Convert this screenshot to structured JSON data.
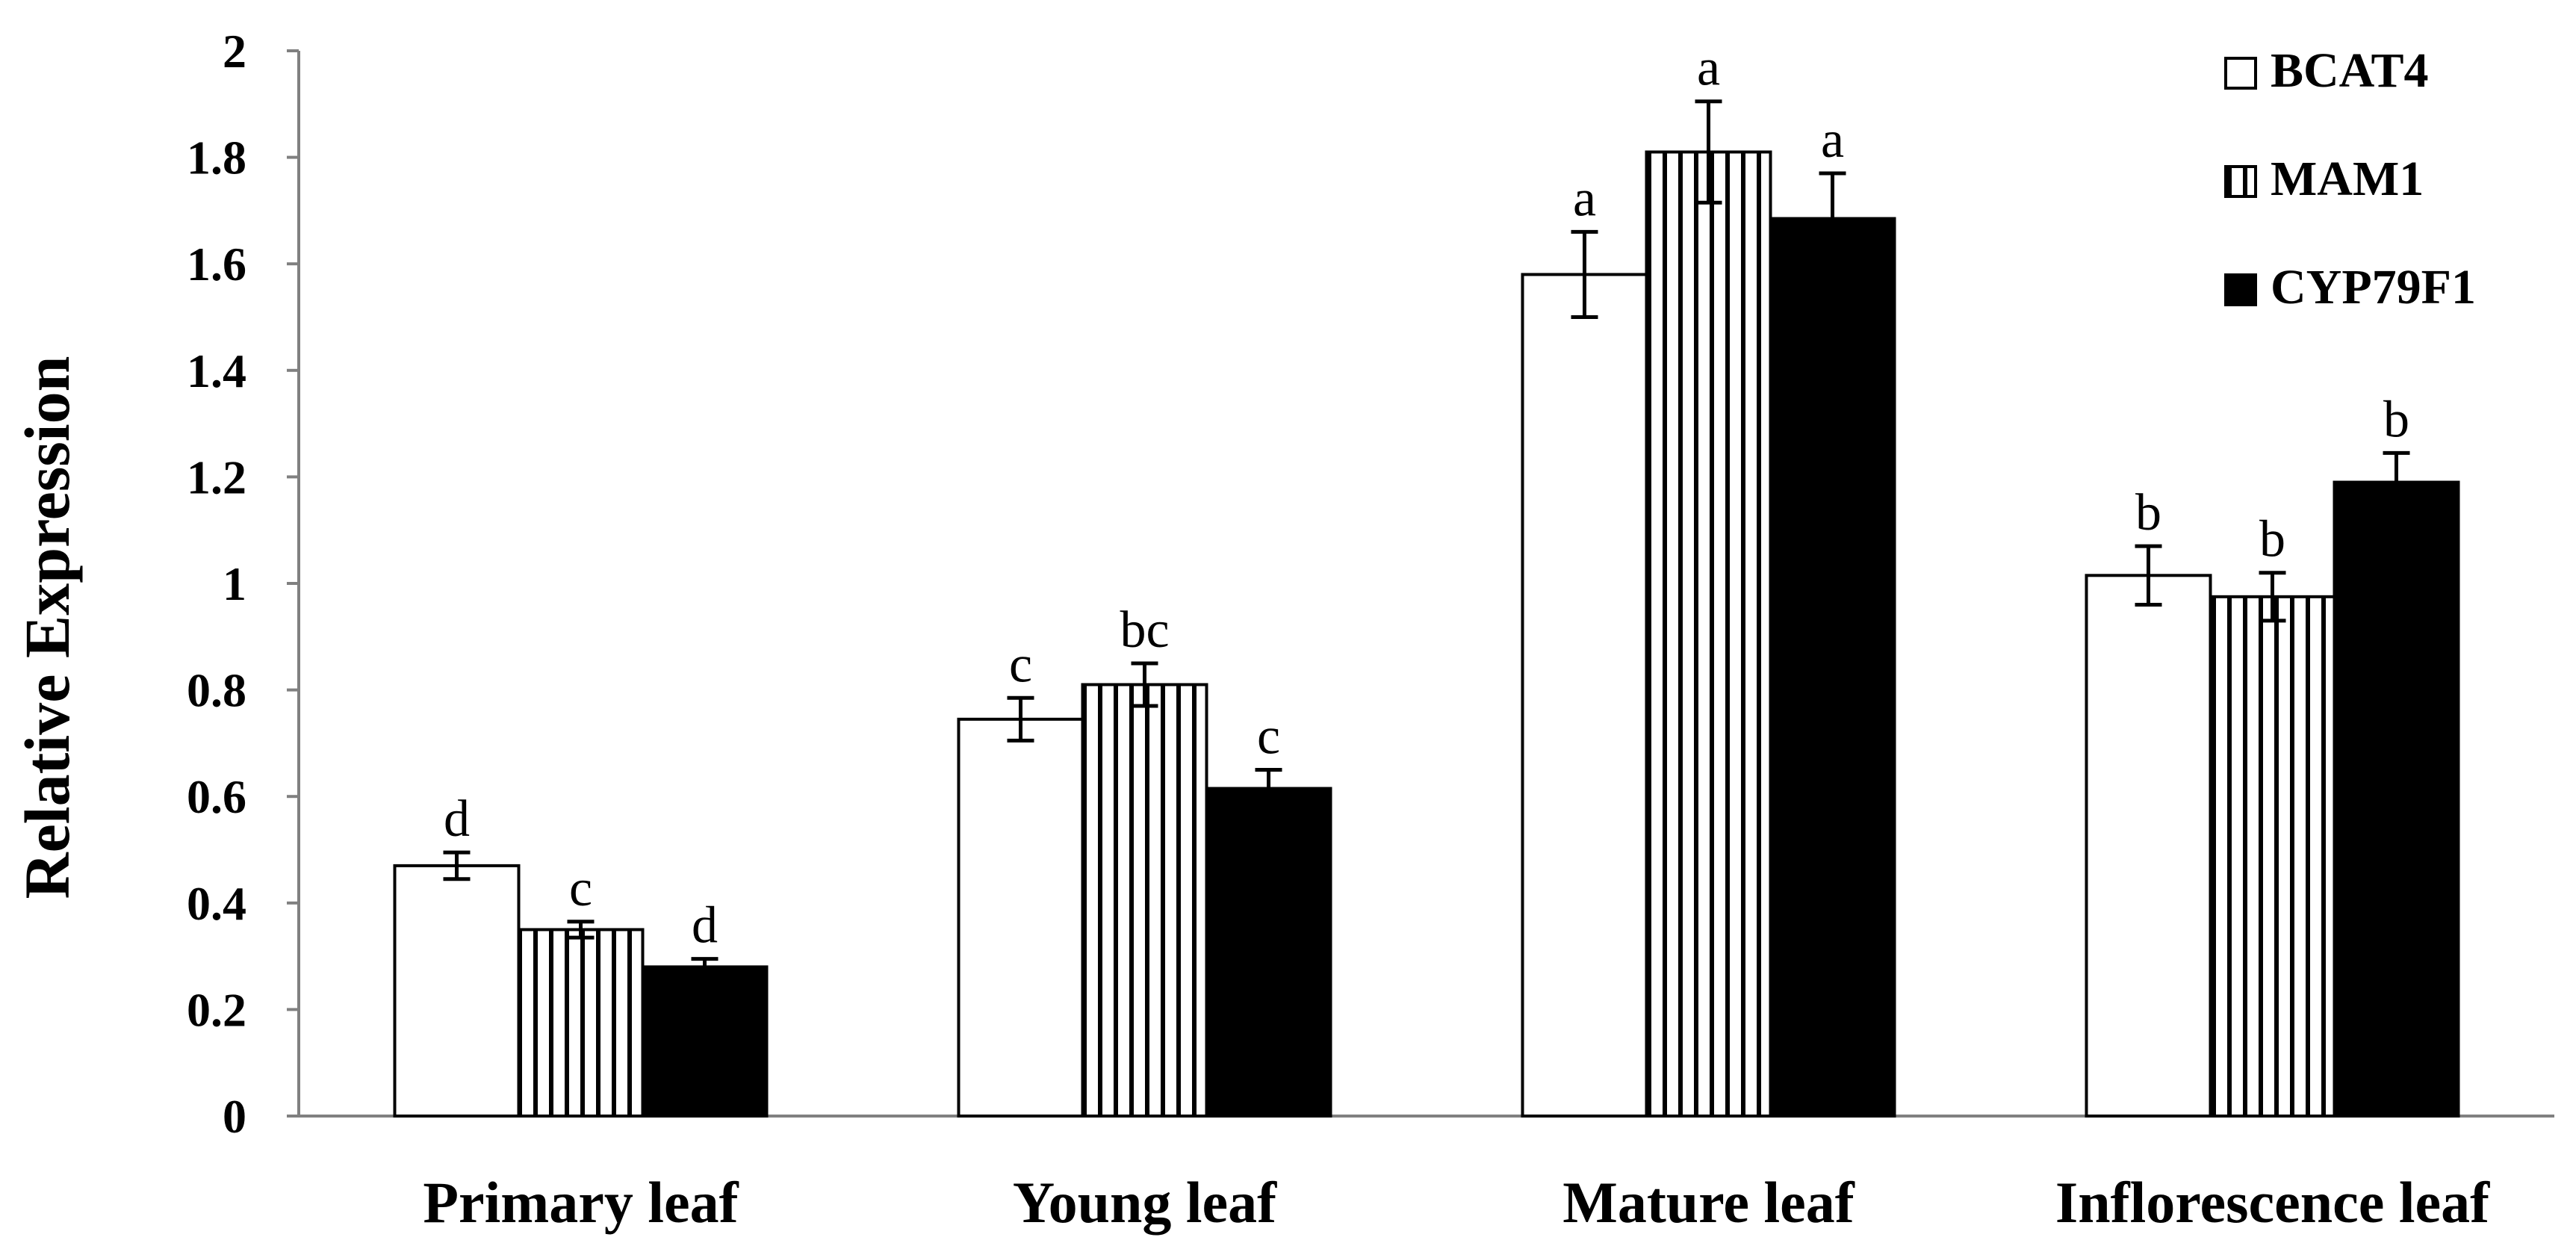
{
  "chart_data": {
    "type": "bar",
    "title": "",
    "xlabel": "",
    "ylabel": "Relative Expression",
    "ylim": [
      0,
      2
    ],
    "yticks": [
      "0",
      "0.2",
      "0.4",
      "0.6",
      "0.8",
      "1",
      "1.2",
      "1.4",
      "1.6",
      "1.8",
      "2"
    ],
    "categories": [
      "Primary leaf",
      "Young leaf",
      "Mature leaf",
      "Inflorescence leaf"
    ],
    "grid": false,
    "legend_position": "top-right",
    "series": [
      {
        "name": "BCAT4",
        "pattern": "open",
        "values": [
          0.47,
          0.745,
          1.58,
          1.015
        ],
        "errors": [
          0.025,
          0.04,
          0.08,
          0.055
        ],
        "significance": [
          "d",
          "c",
          "a",
          "b"
        ]
      },
      {
        "name": "MAM1",
        "pattern": "vertical-stripes",
        "values": [
          0.35,
          0.81,
          1.81,
          0.975
        ],
        "errors": [
          0.015,
          0.04,
          0.095,
          0.045
        ],
        "significance": [
          "c",
          "bc",
          "a",
          "b"
        ]
      },
      {
        "name": "CYP79F1",
        "pattern": "solid",
        "values": [
          0.28,
          0.615,
          1.685,
          1.19
        ],
        "errors": [
          0.015,
          0.035,
          0.085,
          0.055
        ],
        "significance": [
          "d",
          "c",
          "a",
          "b"
        ]
      }
    ]
  }
}
